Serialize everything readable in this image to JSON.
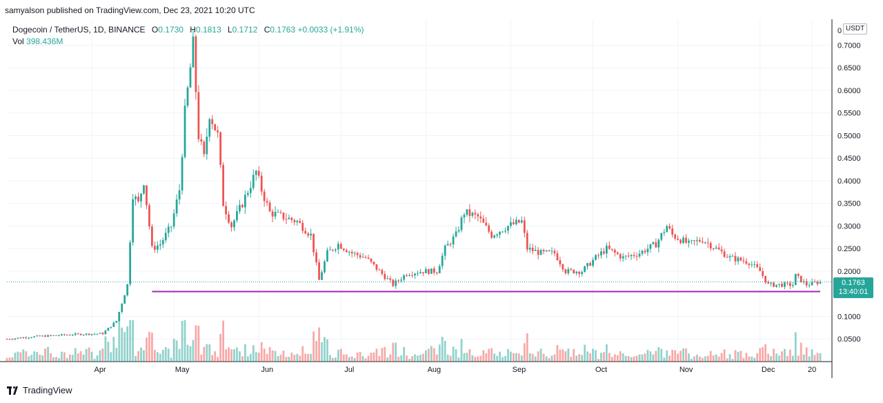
{
  "header": {
    "published": "samyalson published on TradingView.com, Dec 23, 2021 10:20 UTC"
  },
  "legend": {
    "symbol": "Dogecoin / TetherUS, 1D, BINANCE",
    "o_label": "O",
    "o": "0.1730",
    "h_label": "H",
    "h": "0.1813",
    "l_label": "L",
    "l": "0.1712",
    "c_label": "C",
    "c": "0.1763",
    "change": "+0.0033 (+1.91%)",
    "vol_label": "Vol",
    "vol": "398.436M"
  },
  "price_axis": {
    "currency": "USDT",
    "ticks": [
      "0.0500",
      "0.1000",
      "0.2000",
      "0.2500",
      "0.3000",
      "0.3500",
      "0.4000",
      "0.4500",
      "0.5000",
      "0.5500",
      "0.6000",
      "0.6500",
      "0.7000"
    ],
    "top_tick": "0"
  },
  "last_price": {
    "value": "0.1763",
    "countdown": "13:40:01"
  },
  "time_axis": {
    "labels": [
      "Apr",
      "May",
      "Jun",
      "Jul",
      "Aug",
      "Sep",
      "Oct",
      "Nov",
      "Dec",
      "20"
    ]
  },
  "colors": {
    "up": "#26a69a",
    "down": "#ef5350",
    "support": "#9c27b0",
    "grid": "#f0f3fa"
  },
  "footer": {
    "brand": "TradingView"
  },
  "chart_data": {
    "type": "candlestick",
    "title": "Dogecoin / TetherUS, 1D, BINANCE",
    "ylim": [
      0.0,
      0.745
    ],
    "y_ticks": [
      0.05,
      0.1,
      0.2,
      0.25,
      0.3,
      0.35,
      0.4,
      0.45,
      0.5,
      0.55,
      0.6,
      0.65,
      0.7
    ],
    "x_labels": [
      "Apr",
      "May",
      "Jun",
      "Jul",
      "Aug",
      "Sep",
      "Oct",
      "Nov",
      "Dec",
      "20"
    ],
    "close_path": [
      {
        "date": "2021-03-01",
        "close": 0.05
      },
      {
        "date": "2021-03-10",
        "close": 0.055
      },
      {
        "date": "2021-03-25",
        "close": 0.06
      },
      {
        "date": "2021-04-05",
        "close": 0.062
      },
      {
        "date": "2021-04-10",
        "close": 0.09
      },
      {
        "date": "2021-04-14",
        "close": 0.17
      },
      {
        "date": "2021-04-16",
        "close": 0.37
      },
      {
        "date": "2021-04-18",
        "close": 0.35
      },
      {
        "date": "2021-04-20",
        "close": 0.4
      },
      {
        "date": "2021-04-23",
        "close": 0.25
      },
      {
        "date": "2021-04-26",
        "close": 0.26
      },
      {
        "date": "2021-04-30",
        "close": 0.3
      },
      {
        "date": "2021-05-03",
        "close": 0.38
      },
      {
        "date": "2021-05-05",
        "close": 0.55
      },
      {
        "date": "2021-05-08",
        "close": 0.7
      },
      {
        "date": "2021-05-10",
        "close": 0.5
      },
      {
        "date": "2021-05-12",
        "close": 0.45
      },
      {
        "date": "2021-05-14",
        "close": 0.55
      },
      {
        "date": "2021-05-17",
        "close": 0.5
      },
      {
        "date": "2021-05-19",
        "close": 0.35
      },
      {
        "date": "2021-05-22",
        "close": 0.3
      },
      {
        "date": "2021-05-26",
        "close": 0.35
      },
      {
        "date": "2021-05-31",
        "close": 0.42
      },
      {
        "date": "2021-06-02",
        "close": 0.38
      },
      {
        "date": "2021-06-05",
        "close": 0.33
      },
      {
        "date": "2021-06-10",
        "close": 0.32
      },
      {
        "date": "2021-06-15",
        "close": 0.31
      },
      {
        "date": "2021-06-20",
        "close": 0.28
      },
      {
        "date": "2021-06-23",
        "close": 0.18
      },
      {
        "date": "2021-06-26",
        "close": 0.24
      },
      {
        "date": "2021-06-30",
        "close": 0.26
      },
      {
        "date": "2021-07-05",
        "close": 0.24
      },
      {
        "date": "2021-07-10",
        "close": 0.23
      },
      {
        "date": "2021-07-15",
        "close": 0.2
      },
      {
        "date": "2021-07-20",
        "close": 0.17
      },
      {
        "date": "2021-07-25",
        "close": 0.195
      },
      {
        "date": "2021-07-31",
        "close": 0.2
      },
      {
        "date": "2021-08-05",
        "close": 0.2
      },
      {
        "date": "2021-08-08",
        "close": 0.25
      },
      {
        "date": "2021-08-12",
        "close": 0.28
      },
      {
        "date": "2021-08-15",
        "close": 0.33
      },
      {
        "date": "2021-08-20",
        "close": 0.32
      },
      {
        "date": "2021-08-25",
        "close": 0.28
      },
      {
        "date": "2021-08-31",
        "close": 0.3
      },
      {
        "date": "2021-09-05",
        "close": 0.31
      },
      {
        "date": "2021-09-07",
        "close": 0.25
      },
      {
        "date": "2021-09-12",
        "close": 0.24
      },
      {
        "date": "2021-09-17",
        "close": 0.24
      },
      {
        "date": "2021-09-21",
        "close": 0.2
      },
      {
        "date": "2021-09-27",
        "close": 0.2
      },
      {
        "date": "2021-10-02",
        "close": 0.23
      },
      {
        "date": "2021-10-06",
        "close": 0.25
      },
      {
        "date": "2021-10-12",
        "close": 0.23
      },
      {
        "date": "2021-10-18",
        "close": 0.24
      },
      {
        "date": "2021-10-24",
        "close": 0.26
      },
      {
        "date": "2021-10-28",
        "close": 0.3
      },
      {
        "date": "2021-10-30",
        "close": 0.28
      },
      {
        "date": "2021-11-05",
        "close": 0.26
      },
      {
        "date": "2021-11-10",
        "close": 0.27
      },
      {
        "date": "2021-11-15",
        "close": 0.25
      },
      {
        "date": "2021-11-20",
        "close": 0.23
      },
      {
        "date": "2021-11-27",
        "close": 0.22
      },
      {
        "date": "2021-12-01",
        "close": 0.2
      },
      {
        "date": "2021-12-04",
        "close": 0.17
      },
      {
        "date": "2021-12-10",
        "close": 0.17
      },
      {
        "date": "2021-12-13",
        "close": 0.17
      },
      {
        "date": "2021-12-14",
        "close": 0.19
      },
      {
        "date": "2021-12-18",
        "close": 0.17
      },
      {
        "date": "2021-12-23",
        "close": 0.1763
      }
    ],
    "support_line": {
      "value": 0.155,
      "from": "2021-04-23",
      "to": "2021-12-23"
    },
    "last_price": 0.1763,
    "volume": {
      "last": "398.436M"
    }
  }
}
